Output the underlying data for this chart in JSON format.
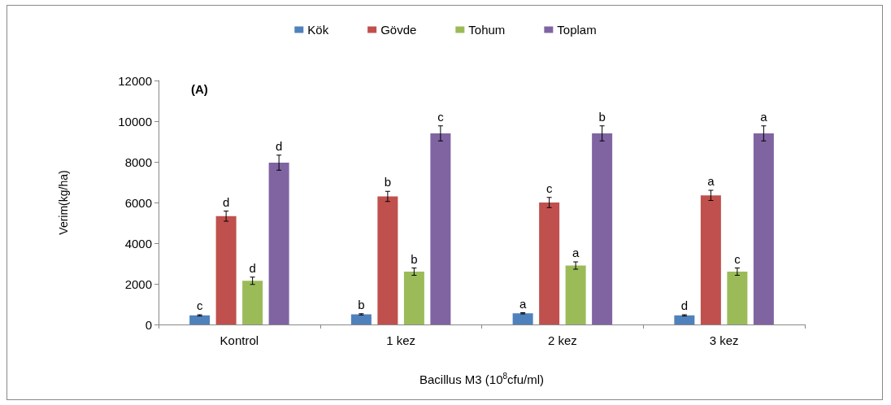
{
  "chart_data": {
    "type": "bar",
    "xlabel": "Bacillus M3 (10$^{8}$cfu/ml)",
    "ylabel": "Verim(kg/ha)",
    "categories": [
      "Kontrol",
      "1 kez",
      "2 kez",
      "3 kez"
    ],
    "series": [
      {
        "name": "Kök",
        "color": "#4f81bd",
        "values": [
          450,
          500,
          550,
          450
        ],
        "errors": [
          30,
          30,
          30,
          30
        ]
      },
      {
        "name": "Gövde",
        "color": "#c0504d",
        "values": [
          5330,
          6300,
          6000,
          6350
        ],
        "errors": [
          250,
          250,
          250,
          250
        ]
      },
      {
        "name": "Tohum",
        "color": "#9bbb59",
        "values": [
          2150,
          2600,
          2900,
          2600
        ],
        "errors": [
          180,
          180,
          180,
          180
        ]
      },
      {
        "name": "Toplam",
        "color": "#8064a2",
        "values": [
          7960,
          9400,
          9400,
          9400
        ],
        "errors": [
          370,
          370,
          370,
          370
        ]
      }
    ],
    "ylim": [
      0,
      12000
    ],
    "yticks": [
      0,
      2000,
      4000,
      6000,
      8000,
      10000,
      12000
    ],
    "grid": false,
    "legend": "top",
    "annotations": [
      "(A)",
      "c",
      "d",
      "d",
      "d",
      "b",
      "b",
      "b",
      "c",
      "a",
      "c",
      "a",
      "b",
      "d",
      "a",
      "c",
      "a"
    ]
  }
}
